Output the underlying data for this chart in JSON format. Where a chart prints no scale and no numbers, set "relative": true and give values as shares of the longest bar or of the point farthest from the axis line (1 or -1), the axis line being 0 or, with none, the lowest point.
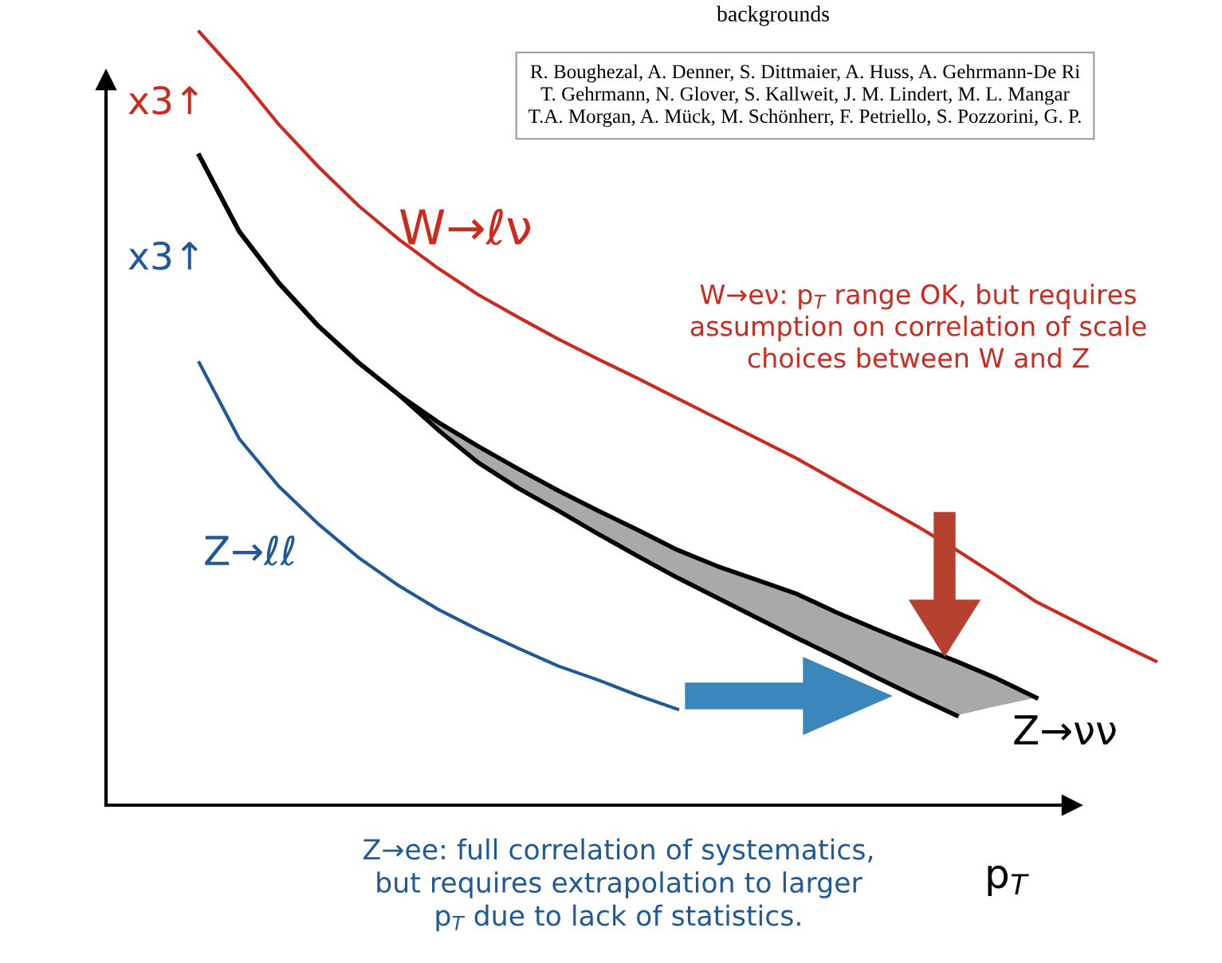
{
  "chart_data": {
    "type": "line",
    "relative": true,
    "xlabel": "p$_{T}$",
    "marker": "none",
    "line_style": "solid",
    "categories": [
      null,
      null,
      null,
      null,
      null,
      null,
      null,
      null,
      null,
      null,
      null,
      null,
      null,
      null,
      null,
      null,
      null,
      null,
      null,
      null,
      null,
      null,
      null,
      null,
      null,
      null
    ],
    "series": [
      {
        "name": "W→ℓν",
        "color": "#cc2a1e",
        "values": [
          null,
          1.0,
          0.943,
          0.88,
          0.825,
          0.775,
          0.732,
          0.694,
          0.66,
          0.631,
          0.603,
          0.577,
          0.552,
          0.526,
          0.5,
          0.474,
          0.448,
          0.419,
          0.39,
          0.361,
          0.33,
          0.297,
          0.263,
          0.237,
          0.211,
          0.186
        ]
      },
      {
        "name": "Z→νν",
        "color": "#000000",
        "values": [
          null,
          0.84,
          0.742,
          0.675,
          0.619,
          0.572,
          0.531,
          0.495,
          0.464,
          0.435,
          0.407,
          0.381,
          0.356,
          0.33,
          0.309,
          0.291,
          0.273,
          0.249,
          0.227,
          0.206,
          0.186,
          0.164,
          0.139,
          null,
          null,
          null
        ],
        "upper": [
          null,
          0.84,
          0.742,
          0.675,
          0.619,
          0.572,
          0.531,
          0.495,
          0.464,
          0.435,
          0.407,
          0.381,
          0.356,
          0.33,
          0.309,
          0.291,
          0.273,
          0.249,
          0.227,
          0.206,
          0.186,
          0.164,
          0.139,
          null,
          null,
          null
        ],
        "lower": [
          null,
          0.84,
          0.742,
          0.675,
          0.619,
          0.572,
          0.531,
          0.485,
          0.443,
          0.41,
          0.381,
          0.351,
          0.322,
          0.294,
          0.268,
          0.242,
          0.216,
          0.191,
          0.165,
          0.14,
          0.116,
          0.128,
          0.139,
          null,
          null,
          null
        ]
      },
      {
        "color": "#000000",
        "values": [
          null,
          0.84,
          0.742,
          0.675,
          0.619,
          0.572,
          0.531,
          0.485,
          0.443,
          0.41,
          0.381,
          0.351,
          0.322,
          0.294,
          0.268,
          0.242,
          0.216,
          0.191,
          0.165,
          0.14,
          0.116,
          null,
          null,
          null,
          null,
          null
        ]
      },
      {
        "name": "Z→ℓℓ",
        "color": "#1f5a96",
        "values": [
          null,
          0.572,
          0.474,
          0.412,
          0.363,
          0.32,
          0.284,
          0.253,
          0.227,
          0.203,
          0.18,
          0.162,
          0.142,
          0.124,
          null,
          null,
          null,
          null,
          null,
          null,
          null,
          null,
          null,
          null,
          null,
          null
        ]
      }
    ],
    "annotations": [
      "x3↑",
      "x3↑",
      "W→eν: p$_{T}$ range OK, but requires\nassumption on correlation of scale\nchoices between W and Z",
      "Z→ee: full correlation of systematics,\nbut requires extrapolation to larger\np$_{T}$ due to lack of statistics.",
      "backgrounds",
      "R. Boughezal, A. Denner, S. Dittmaier, A. Huss, A. Gehrmann-De Ri\nT. Gehrmann, N. Glover, S. Kallweit, J. M. Lindert, M. L. Mangar\nT.A. Morgan, A. Mück, M. Schönherr, F. Petriello, S. Pozzorini, G. P."
    ]
  }
}
